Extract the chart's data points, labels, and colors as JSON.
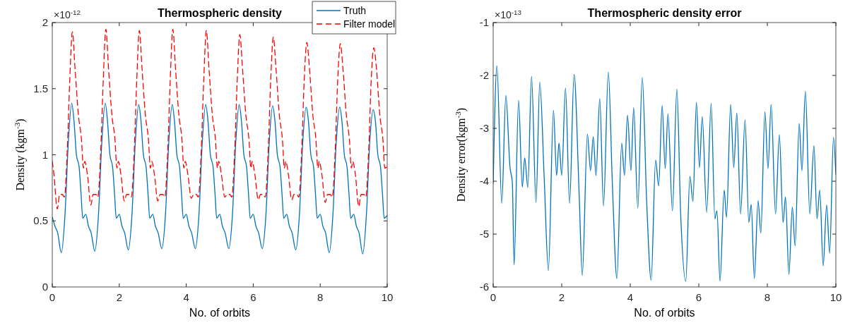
{
  "chart_data": [
    {
      "type": "line",
      "title": "Thermospheric density",
      "xlabel": "No. of orbits",
      "ylabel": "Density (kgm$^{-3}$)",
      "annotations": [
        "×10$^{-12}$"
      ],
      "xlim": [
        0,
        10
      ],
      "xticks": [
        0,
        2,
        4,
        6,
        8,
        10
      ],
      "ylim": [
        0,
        2
      ],
      "yticks": [
        0,
        0.5,
        1,
        1.5,
        2
      ],
      "legend": "top right",
      "grid": false,
      "series": [
        {
          "name": "Truth",
          "color": "#0072bd",
          "line_style": "solid",
          "x": [
            0,
            0.08,
            0.16,
            0.27,
            0.38,
            0.48,
            0.58,
            0.65,
            0.72,
            0.8,
            0.86,
            0.91,
            1,
            1.08,
            1.16,
            1.27,
            1.38,
            1.48,
            1.58,
            1.65,
            1.72,
            1.8,
            1.86,
            1.91,
            2,
            2.08,
            2.16,
            2.27,
            2.38,
            2.48,
            2.58,
            2.65,
            2.72,
            2.8,
            2.86,
            2.91,
            3,
            3.08,
            3.16,
            3.27,
            3.38,
            3.48,
            3.58,
            3.65,
            3.72,
            3.8,
            3.86,
            3.91,
            4,
            4.08,
            4.16,
            4.27,
            4.38,
            4.48,
            4.58,
            4.65,
            4.72,
            4.8,
            4.86,
            4.91,
            5,
            5.08,
            5.16,
            5.27,
            5.38,
            5.48,
            5.58,
            5.65,
            5.72,
            5.8,
            5.86,
            5.91,
            6,
            6.08,
            6.16,
            6.27,
            6.38,
            6.48,
            6.58,
            6.65,
            6.72,
            6.8,
            6.86,
            6.91,
            7,
            7.08,
            7.16,
            7.27,
            7.38,
            7.48,
            7.58,
            7.65,
            7.72,
            7.8,
            7.86,
            7.91,
            8,
            8.08,
            8.16,
            8.27,
            8.38,
            8.48,
            8.58,
            8.65,
            8.72,
            8.8,
            8.86,
            8.91,
            9,
            9.08,
            9.16,
            9.27,
            9.38,
            9.48,
            9.58,
            9.65,
            9.72,
            9.8,
            9.86,
            9.91,
            10
          ],
          "values": [
            0.53,
            0.46,
            0.41,
            0.26,
            0.55,
            1.1,
            1.39,
            1.25,
            1,
            0.91,
            0.7,
            0.52,
            0.55,
            0.46,
            0.41,
            0.27,
            0.55,
            1.1,
            1.39,
            1.25,
            1,
            0.91,
            0.7,
            0.52,
            0.55,
            0.46,
            0.41,
            0.28,
            0.55,
            1.1,
            1.38,
            1.25,
            1,
            0.91,
            0.7,
            0.52,
            0.55,
            0.46,
            0.41,
            0.29,
            0.55,
            1.1,
            1.38,
            1.25,
            1,
            0.91,
            0.7,
            0.52,
            0.55,
            0.46,
            0.41,
            0.29,
            0.55,
            1.1,
            1.38,
            1.25,
            1,
            0.91,
            0.7,
            0.52,
            0.55,
            0.46,
            0.41,
            0.29,
            0.55,
            1.1,
            1.38,
            1.25,
            1,
            0.91,
            0.7,
            0.52,
            0.55,
            0.46,
            0.41,
            0.29,
            0.55,
            1.1,
            1.37,
            1.25,
            1,
            0.91,
            0.7,
            0.52,
            0.55,
            0.46,
            0.41,
            0.28,
            0.55,
            1.1,
            1.36,
            1.25,
            1,
            0.91,
            0.7,
            0.52,
            0.55,
            0.46,
            0.41,
            0.26,
            0.55,
            1.1,
            1.36,
            1.25,
            1,
            0.91,
            0.7,
            0.52,
            0.55,
            0.46,
            0.41,
            0.25,
            0.55,
            1.1,
            1.34,
            1.25,
            1,
            0.91,
            0.7,
            0.52,
            0.54
          ]
        },
        {
          "name": "Filter model",
          "color": "#ff0000",
          "line_style": "dashed",
          "x": [
            0,
            0.05,
            0.15,
            0.22,
            0.3,
            0.36,
            0.45,
            0.52,
            0.6,
            0.68,
            0.78,
            0.87,
            0.93,
            0.97,
            1.05,
            1.15,
            1.22,
            1.3,
            1.36,
            1.45,
            1.52,
            1.6,
            1.68,
            1.78,
            1.87,
            1.93,
            1.97,
            2.05,
            2.15,
            2.22,
            2.3,
            2.36,
            2.45,
            2.52,
            2.6,
            2.68,
            2.78,
            2.87,
            2.93,
            2.97,
            3.05,
            3.15,
            3.22,
            3.3,
            3.36,
            3.45,
            3.52,
            3.6,
            3.68,
            3.78,
            3.87,
            3.93,
            3.97,
            4.05,
            4.15,
            4.22,
            4.3,
            4.36,
            4.45,
            4.52,
            4.6,
            4.68,
            4.78,
            4.87,
            4.93,
            4.97,
            5.05,
            5.15,
            5.22,
            5.3,
            5.36,
            5.45,
            5.52,
            5.6,
            5.68,
            5.78,
            5.87,
            5.93,
            5.97,
            6.05,
            6.15,
            6.22,
            6.3,
            6.36,
            6.45,
            6.52,
            6.6,
            6.68,
            6.78,
            6.87,
            6.93,
            6.97,
            7.05,
            7.15,
            7.22,
            7.3,
            7.36,
            7.45,
            7.52,
            7.6,
            7.68,
            7.78,
            7.87,
            7.93,
            7.97,
            8.05,
            8.15,
            8.22,
            8.3,
            8.36,
            8.45,
            8.52,
            8.6,
            8.68,
            8.78,
            8.87,
            8.93,
            8.97,
            9.05,
            9.15,
            9.22,
            9.3,
            9.36,
            9.45,
            9.52,
            9.6,
            9.68,
            9.78,
            9.87,
            9.93,
            10
          ],
          "values": [
            0.95,
            0.85,
            0.59,
            0.7,
            0.7,
            0.68,
            1.05,
            1.55,
            1.93,
            1.65,
            1.3,
            1.12,
            0.9,
            0.95,
            0.85,
            0.62,
            0.7,
            0.7,
            0.68,
            1.05,
            1.55,
            1.95,
            1.65,
            1.3,
            1.12,
            0.9,
            0.95,
            0.85,
            0.65,
            0.7,
            0.7,
            0.68,
            1.05,
            1.55,
            1.94,
            1.65,
            1.3,
            1.12,
            0.9,
            0.95,
            0.85,
            0.65,
            0.7,
            0.7,
            0.68,
            1.05,
            1.55,
            1.95,
            1.65,
            1.3,
            1.12,
            0.9,
            0.95,
            0.85,
            0.67,
            0.7,
            0.7,
            0.68,
            1.05,
            1.55,
            1.94,
            1.65,
            1.3,
            1.12,
            0.9,
            0.95,
            0.85,
            0.68,
            0.7,
            0.7,
            0.68,
            1.05,
            1.55,
            1.91,
            1.65,
            1.3,
            1.12,
            0.9,
            0.95,
            0.85,
            0.66,
            0.7,
            0.7,
            0.68,
            1.05,
            1.55,
            1.89,
            1.65,
            1.3,
            1.12,
            0.9,
            0.95,
            0.85,
            0.66,
            0.7,
            0.7,
            0.68,
            1.05,
            1.55,
            1.85,
            1.65,
            1.3,
            1.12,
            0.9,
            0.95,
            0.85,
            0.64,
            0.7,
            0.7,
            0.68,
            1.05,
            1.55,
            1.84,
            1.65,
            1.3,
            1.12,
            0.9,
            0.95,
            0.85,
            0.61,
            0.7,
            0.7,
            0.68,
            1.05,
            1.55,
            1.81,
            1.65,
            1.3,
            1.12,
            0.9,
            0.91
          ]
        }
      ]
    },
    {
      "type": "line",
      "title": "Thermospheric density error",
      "xlabel": "No. of orbits",
      "ylabel": "Density error(kgm$^{-3}$)",
      "annotations": [
        "×10$^{-13}$"
      ],
      "xlim": [
        0,
        10
      ],
      "xticks": [
        0,
        2,
        4,
        6,
        8,
        10
      ],
      "ylim": [
        -6,
        -1
      ],
      "yticks": [
        -6,
        -5,
        -4,
        -3,
        -2,
        -1
      ],
      "grid": false,
      "series": [
        {
          "color": "#0072bd",
          "line_style": "solid",
          "x": [
            0,
            0.11,
            0.25,
            0.37,
            0.49,
            0.56,
            0.61,
            0.74,
            0.85,
            0.92,
            1.01,
            1.12,
            1.25,
            1.36,
            1.49,
            1.61,
            1.76,
            1.85,
            1.92,
            2,
            2.11,
            2.23,
            2.36,
            2.51,
            2.6,
            2.75,
            2.84,
            2.92,
            3,
            3.11,
            3.22,
            3.36,
            3.48,
            3.61,
            3.75,
            3.83,
            3.92,
            4.02,
            4.1,
            4.22,
            4.35,
            4.48,
            4.61,
            4.74,
            4.83,
            4.93,
            5.02,
            5.1,
            5.23,
            5.36,
            5.47,
            5.62,
            5.74,
            5.83,
            5.93,
            6.02,
            6.1,
            6.23,
            6.36,
            6.47,
            6.53,
            6.62,
            6.74,
            6.81,
            6.93,
            7.02,
            7.11,
            7.22,
            7.35,
            7.46,
            7.53,
            7.62,
            7.73,
            7.81,
            7.93,
            8.02,
            8.11,
            8.24,
            8.35,
            8.46,
            8.53,
            8.63,
            8.73,
            8.81,
            8.93,
            9.01,
            9.11,
            9.24,
            9.36,
            9.45,
            9.53,
            9.63,
            9.73,
            9.82,
            9.93,
            10
          ],
          "values": [
            -4.04,
            -1.82,
            -4.42,
            -2.38,
            -3.73,
            -4.04,
            -5.58,
            -2.47,
            -4.11,
            -3.56,
            -4.12,
            -2.02,
            -4.4,
            -2.13,
            -3.96,
            -5.69,
            -2.66,
            -3.89,
            -3.28,
            -3.89,
            -2.24,
            -4.42,
            -1.98,
            -4.27,
            -5.78,
            -3.11,
            -3.8,
            -3.16,
            -3.89,
            -2.44,
            -4.47,
            -1.94,
            -4.09,
            -5.84,
            -3.28,
            -3.89,
            -2.75,
            -3.8,
            -2.61,
            -4.51,
            -2.04,
            -4.4,
            -5.87,
            -3.6,
            -4.09,
            -2.57,
            -3.76,
            -2.73,
            -4.56,
            -2.26,
            -4.6,
            -5.89,
            -3.91,
            -4.38,
            -2.51,
            -3.74,
            -2.78,
            -4.59,
            -2.53,
            -4.71,
            -4.56,
            -5.89,
            -4.17,
            -4.68,
            -2.55,
            -3.74,
            -2.71,
            -4.62,
            -2.84,
            -4.78,
            -4.44,
            -5.84,
            -4.37,
            -4.98,
            -2.69,
            -3.76,
            -2.55,
            -4.62,
            -3.12,
            -4.78,
            -4.3,
            -5.76,
            -4.49,
            -5.22,
            -2.91,
            -3.8,
            -2.3,
            -4.62,
            -3.33,
            -4.71,
            -4.17,
            -5.6,
            -4.45,
            -5.36,
            -3.17,
            -3.87
          ]
        }
      ]
    }
  ]
}
